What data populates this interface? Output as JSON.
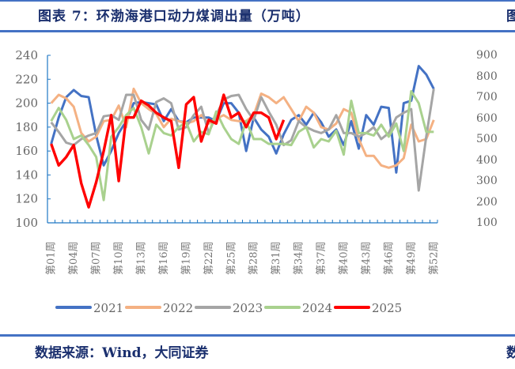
{
  "header": {
    "title": "图表 7：环渤海港口动力煤调出量（万吨）",
    "right_partial": "图"
  },
  "footer": {
    "source": "数据来源：Wind，大同证券",
    "right_partial": "数"
  },
  "right_panel": {
    "y_ticks": [
      "900",
      "800",
      "700",
      "600",
      "500",
      "400",
      "300",
      "200",
      "100"
    ]
  },
  "chart_data": {
    "type": "line",
    "title": "环渤海港口动力煤调出量（万吨）",
    "xlabel": "",
    "ylabel": "万吨",
    "ylim": [
      100,
      240
    ],
    "y_ticks": [
      100,
      120,
      140,
      160,
      180,
      200,
      220,
      240
    ],
    "x_tick_labels": [
      "第01周",
      "第04周",
      "第07周",
      "第10周",
      "第13周",
      "第16周",
      "第19周",
      "第22周",
      "第25周",
      "第28周",
      "第31周",
      "第34周",
      "第37周",
      "第40周",
      "第43周",
      "第46周",
      "第49周",
      "第52周"
    ],
    "x_tick_weeks": [
      1,
      4,
      7,
      10,
      13,
      16,
      19,
      22,
      25,
      28,
      31,
      34,
      37,
      40,
      43,
      46,
      49,
      52
    ],
    "legend_position": "bottom",
    "series": [
      {
        "name": "2021",
        "color": "#4472c4",
        "values": [
          166,
          188,
          205,
          211,
          206,
          205,
          173,
          148,
          160,
          175,
          185,
          200,
          201,
          200,
          199,
          185,
          195,
          185,
          184,
          188,
          188,
          188,
          185,
          200,
          200,
          192,
          160,
          188,
          178,
          172,
          158,
          174,
          186,
          190,
          182,
          192,
          184,
          172,
          178,
          165,
          185,
          162,
          190,
          182,
          197,
          196,
          142,
          200,
          202,
          231,
          224,
          212
        ]
      },
      {
        "name": "2022",
        "color": "#f4b183",
        "values": [
          200,
          207,
          204,
          197,
          175,
          168,
          172,
          185,
          186,
          198,
          180,
          212,
          200,
          195,
          191,
          180,
          187,
          185,
          183,
          185,
          190,
          183,
          187,
          190,
          186,
          185,
          185,
          190,
          208,
          205,
          200,
          205,
          195,
          185,
          197,
          192,
          180,
          178,
          183,
          195,
          192,
          170,
          156,
          156,
          148,
          146,
          148,
          154,
          182,
          168,
          170,
          186
        ]
      },
      {
        "name": "2023",
        "color": "#a5a5a5",
        "values": [
          184,
          176,
          167,
          165,
          170,
          173,
          175,
          189,
          190,
          186,
          207,
          207,
          186,
          178,
          201,
          204,
          200,
          178,
          180,
          190,
          197,
          175,
          190,
          203,
          206,
          207,
          195,
          186,
          205,
          193,
          182,
          165,
          169,
          185,
          180,
          177,
          175,
          178,
          190,
          175,
          175,
          172,
          175,
          180,
          170,
          175,
          188,
          192,
          195,
          127,
          172,
          212
        ]
      },
      {
        "name": "2024",
        "color": "#a9d18e",
        "values": [
          185,
          196,
          186,
          170,
          173,
          165,
          155,
          119,
          172,
          180,
          190,
          196,
          180,
          158,
          182,
          175,
          173,
          180,
          184,
          168,
          176,
          174,
          193,
          180,
          170,
          166,
          185,
          170,
          170,
          166,
          166,
          166,
          165,
          176,
          180,
          163,
          170,
          168,
          177,
          157,
          202,
          175,
          175,
          173,
          182,
          172,
          183,
          160,
          210,
          200,
          176,
          176
        ]
      },
      {
        "name": "2025",
        "color": "#ff0000",
        "values": [
          166,
          148,
          155,
          165,
          133,
          113,
          134,
          160,
          190,
          135,
          188,
          188,
          202,
          198,
          192,
          188,
          185,
          146,
          199,
          205,
          168,
          186,
          183,
          207,
          188,
          192,
          180,
          192,
          192,
          188,
          170,
          186
        ]
      }
    ]
  }
}
